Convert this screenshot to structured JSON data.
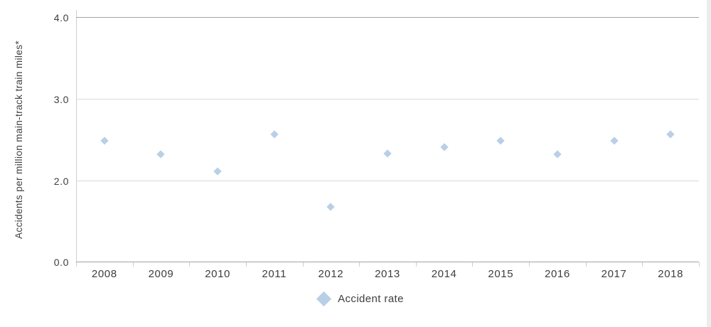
{
  "chart_data": {
    "type": "scatter",
    "title": "",
    "xlabel": "",
    "ylabel": "Accidents per million main-track train miles*",
    "categories": [
      "2008",
      "2009",
      "2010",
      "2011",
      "2012",
      "2013",
      "2014",
      "2015",
      "2016",
      "2017",
      "2018"
    ],
    "series": [
      {
        "name": "Accident rate",
        "marker": "diamond",
        "color": "#b9cfe6",
        "values": [
          2.5,
          2.33,
          2.12,
          2.57,
          1.69,
          2.34,
          2.42,
          2.5,
          2.33,
          2.5,
          2.57
        ]
      }
    ],
    "y_axis": {
      "tick_labels": [
        "4.0",
        "3.0",
        "2.0",
        "0.0"
      ],
      "tick_values": [
        4.0,
        3.0,
        2.0,
        0.0
      ],
      "range_top": 4.0,
      "note": "axis truncated below 2.0; the 0.0 label sits at the position of ~1.0 (scale break without marks)"
    },
    "grid": "horizontal",
    "legend": {
      "position": "bottom-center",
      "entries": [
        {
          "label": "Accident rate",
          "marker": "diamond",
          "color": "#b9cfe6"
        }
      ]
    }
  },
  "colors": {
    "marker": "#b9cfe6",
    "gridline": "#d9d9d9",
    "axis_strong": "#a3a3a3",
    "axis_light": "#cfcfcf",
    "text": "#3d3d3d"
  }
}
